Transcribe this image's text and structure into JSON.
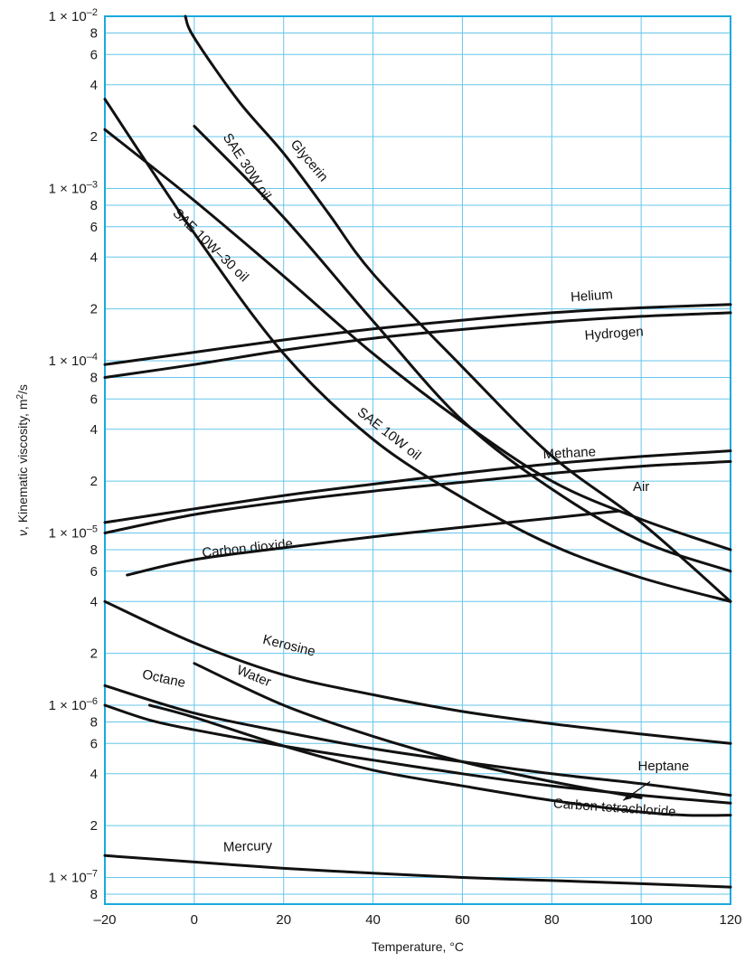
{
  "chart_data": {
    "type": "line",
    "xlabel": "Temperature, °C",
    "ylabel": "ν, Kinematic viscosity, m²/s",
    "ylabel_parts": {
      "symbol": "ν",
      "text": ", Kinematic viscosity, m",
      "sup": "2",
      "unit_tail": "/s"
    },
    "x_scale": "linear",
    "y_scale": "log",
    "xlim": [
      -20,
      120
    ],
    "ylim": [
      7e-08,
      0.01
    ],
    "grid": true,
    "colors": {
      "grid": "#66c6ea",
      "frame": "#19a9de",
      "line": "#111111"
    },
    "x_ticks": [
      {
        "value": -20,
        "label": "–20"
      },
      {
        "value": 0,
        "label": "0"
      },
      {
        "value": 20,
        "label": "20"
      },
      {
        "value": 40,
        "label": "40"
      },
      {
        "value": 60,
        "label": "60"
      },
      {
        "value": 80,
        "label": "80"
      },
      {
        "value": 100,
        "label": "100"
      },
      {
        "value": 120,
        "label": "120"
      }
    ],
    "y_ticks": [
      {
        "value": 0.01,
        "mant": "1 × 10",
        "exp": "–2"
      },
      {
        "value": 0.008,
        "mant": "8"
      },
      {
        "value": 0.006,
        "mant": "6"
      },
      {
        "value": 0.004,
        "mant": "4"
      },
      {
        "value": 0.002,
        "mant": "2"
      },
      {
        "value": 0.001,
        "mant": "1 × 10",
        "exp": "–3"
      },
      {
        "value": 0.0008,
        "mant": "8"
      },
      {
        "value": 0.0006,
        "mant": "6"
      },
      {
        "value": 0.0004,
        "mant": "4"
      },
      {
        "value": 0.0002,
        "mant": "2"
      },
      {
        "value": 0.0001,
        "mant": "1 × 10",
        "exp": "–4"
      },
      {
        "value": 8e-05,
        "mant": "8"
      },
      {
        "value": 6e-05,
        "mant": "6"
      },
      {
        "value": 4e-05,
        "mant": "4"
      },
      {
        "value": 2e-05,
        "mant": "2"
      },
      {
        "value": 1e-05,
        "mant": "1 × 10",
        "exp": "–5"
      },
      {
        "value": 8e-06,
        "mant": "8"
      },
      {
        "value": 6e-06,
        "mant": "6"
      },
      {
        "value": 4e-06,
        "mant": "4"
      },
      {
        "value": 2e-06,
        "mant": "2"
      },
      {
        "value": 1e-06,
        "mant": "1 × 10",
        "exp": "–6"
      },
      {
        "value": 8e-07,
        "mant": "8"
      },
      {
        "value": 6e-07,
        "mant": "6"
      },
      {
        "value": 4e-07,
        "mant": "4"
      },
      {
        "value": 2e-07,
        "mant": "2"
      },
      {
        "value": 1e-07,
        "mant": "1 × 10",
        "exp": "–7"
      },
      {
        "value": 8e-08,
        "mant": "8"
      }
    ],
    "series": [
      {
        "name": "Glycerin",
        "x": [
          -2,
          0,
          10,
          20,
          30,
          40,
          60,
          80,
          100,
          120
        ],
        "y": [
          0.01,
          0.0075,
          0.0032,
          0.0016,
          0.00072,
          0.00032,
          9.2e-05,
          2.8e-05,
          1.15e-05,
          4e-06
        ],
        "label": {
          "x": 25,
          "y": 0.0014,
          "angle": 50
        }
      },
      {
        "name": "SAE 30W oil",
        "x": [
          0,
          20,
          40,
          60,
          80,
          100,
          120
        ],
        "y": [
          0.0023,
          0.00068,
          0.00017,
          4.5e-05,
          1.8e-05,
          9e-06,
          6e-06
        ],
        "label": {
          "x": 11,
          "y": 0.0013,
          "angle": 57
        }
      },
      {
        "name": "SAE 10W–30 oil",
        "x": [
          -20,
          0,
          20,
          40,
          60,
          80,
          100,
          120
        ],
        "y": [
          0.0022,
          0.00085,
          0.00031,
          0.00011,
          4.4e-05,
          2e-05,
          1.2e-05,
          8e-06
        ],
        "label": {
          "x": 3,
          "y": 0.00045,
          "angle": 44
        }
      },
      {
        "name": "SAE 10W oil",
        "x": [
          -20,
          0,
          20,
          40,
          60,
          80,
          100,
          120
        ],
        "y": [
          0.0033,
          0.00055,
          0.00011,
          3.5e-05,
          1.6e-05,
          8.5e-06,
          5.5e-06,
          4e-06
        ],
        "label": {
          "x": 43,
          "y": 3.6e-05,
          "angle": 38
        }
      },
      {
        "name": "Helium",
        "x": [
          -20,
          0,
          20,
          40,
          60,
          80,
          100,
          120
        ],
        "y": [
          9.5e-05,
          0.000112,
          0.000132,
          0.000153,
          0.000172,
          0.00019,
          0.000203,
          0.000212
        ],
        "label": {
          "x": 89,
          "y": 0.000225,
          "angle": -4
        }
      },
      {
        "name": "Hydrogen",
        "x": [
          -20,
          0,
          20,
          40,
          60,
          80,
          100,
          120
        ],
        "y": [
          8e-05,
          9.5e-05,
          0.000115,
          0.000135,
          0.000152,
          0.000168,
          0.000181,
          0.00019
        ],
        "label": {
          "x": 94,
          "y": 0.000136,
          "angle": -4
        }
      },
      {
        "name": "Methane",
        "x": [
          -20,
          0,
          20,
          40,
          60,
          80,
          100,
          120
        ],
        "y": [
          1.15e-05,
          1.38e-05,
          1.65e-05,
          1.92e-05,
          2.22e-05,
          2.52e-05,
          2.78e-05,
          3e-05
        ],
        "label": {
          "x": 84,
          "y": 2.75e-05,
          "angle": -3
        }
      },
      {
        "name": "Air",
        "x": [
          -20,
          0,
          20,
          40,
          60,
          80,
          100,
          120
        ],
        "y": [
          1e-05,
          1.28e-05,
          1.52e-05,
          1.75e-05,
          1.97e-05,
          2.22e-05,
          2.44e-05,
          2.6e-05
        ],
        "label": {
          "x": 100,
          "y": 1.75e-05,
          "angle": 0
        }
      },
      {
        "name": "Carbon dioxide",
        "x": [
          -15,
          0,
          20,
          40,
          60,
          80,
          90,
          95
        ],
        "y": [
          5.7e-06,
          7e-06,
          8.2e-06,
          9.5e-06,
          1.08e-05,
          1.22e-05,
          1.3e-05,
          1.34e-05
        ],
        "label": {
          "x": 12,
          "y": 7.7e-06,
          "angle": -6
        }
      },
      {
        "name": "Kerosine",
        "x": [
          -20,
          0,
          20,
          40,
          60,
          80,
          100,
          120
        ],
        "y": [
          4e-06,
          2.3e-06,
          1.5e-06,
          1.15e-06,
          9.2e-07,
          7.8e-07,
          6.8e-07,
          6e-07
        ],
        "label": {
          "x": 21,
          "y": 2.1e-06,
          "angle": 14
        }
      },
      {
        "name": "Water",
        "x": [
          0,
          20,
          40,
          60,
          80,
          100
        ],
        "y": [
          1.75e-06,
          1e-06,
          6.6e-07,
          4.7e-07,
          3.6e-07,
          2.9e-07
        ],
        "label": {
          "x": 13,
          "y": 1.4e-06,
          "angle": 22
        }
      },
      {
        "name": "Octane",
        "x": [
          -20,
          0,
          20,
          40,
          60,
          80,
          100,
          120
        ],
        "y": [
          1.3e-06,
          9e-07,
          7e-07,
          5.6e-07,
          4.7e-07,
          4e-07,
          3.5e-07,
          3e-07
        ],
        "label": {
          "x": -7,
          "y": 1.35e-06,
          "angle": 12
        }
      },
      {
        "name": "Heptane",
        "x": [
          -20,
          -10,
          0,
          20,
          40,
          60,
          80,
          100,
          120
        ],
        "y": [
          1e-06,
          8.2e-07,
          7.2e-07,
          5.8e-07,
          4.8e-07,
          4e-07,
          3.4e-07,
          3e-07,
          2.7e-07
        ],
        "label": {
          "x": 105,
          "y": 4.2e-07,
          "angle": 0
        },
        "pointer": {
          "from": {
            "x": 102,
            "y": 3.6e-07
          },
          "to": {
            "x": 96,
            "y": 2.8e-07
          }
        }
      },
      {
        "name": "Carbon tetrachloride",
        "x": [
          -10,
          0,
          20,
          40,
          60,
          80,
          100,
          110,
          120
        ],
        "y": [
          1e-06,
          8.5e-07,
          5.8e-07,
          4.2e-07,
          3.4e-07,
          2.8e-07,
          2.4e-07,
          2.3e-07,
          2.3e-07
        ],
        "label": {
          "x": 94,
          "y": 2.4e-07,
          "angle": 4
        }
      },
      {
        "name": "Mercury",
        "x": [
          -20,
          0,
          20,
          40,
          60,
          80,
          100,
          120
        ],
        "y": [
          1.34e-07,
          1.23e-07,
          1.13e-07,
          1.06e-07,
          1e-07,
          9.6e-08,
          9.2e-08,
          8.8e-08
        ],
        "label": {
          "x": 12,
          "y": 1.43e-07,
          "angle": -2
        }
      }
    ]
  }
}
